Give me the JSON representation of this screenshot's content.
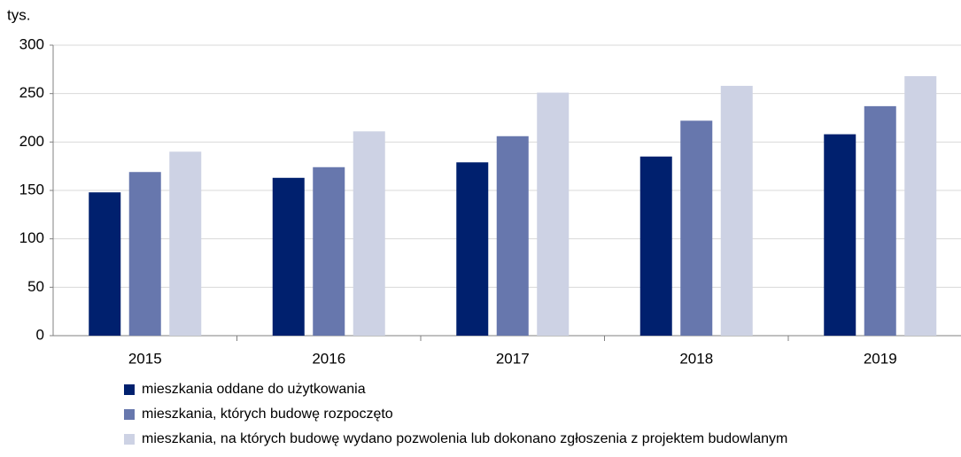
{
  "chart_data": {
    "type": "bar",
    "y_label": "tys.",
    "categories": [
      "2015",
      "2016",
      "2017",
      "2018",
      "2019"
    ],
    "series": [
      {
        "name": "mieszkania oddane do użytkowania",
        "color": "#00206e",
        "values": [
          148,
          163,
          179,
          185,
          208
        ]
      },
      {
        "name": "mieszkania, których budowę rozpoczęto",
        "color": "#6777ad",
        "values": [
          169,
          174,
          206,
          222,
          237
        ]
      },
      {
        "name": "mieszkania, na których budowę wydano pozwolenia lub dokonano zgłoszenia z projektem budowlanym",
        "color": "#cdd2e4",
        "values": [
          190,
          211,
          251,
          258,
          268
        ]
      }
    ],
    "ylim": [
      0,
      300
    ],
    "yticks": [
      0,
      50,
      100,
      150,
      200,
      250,
      300
    ],
    "grid": true,
    "legend": "bottom"
  }
}
